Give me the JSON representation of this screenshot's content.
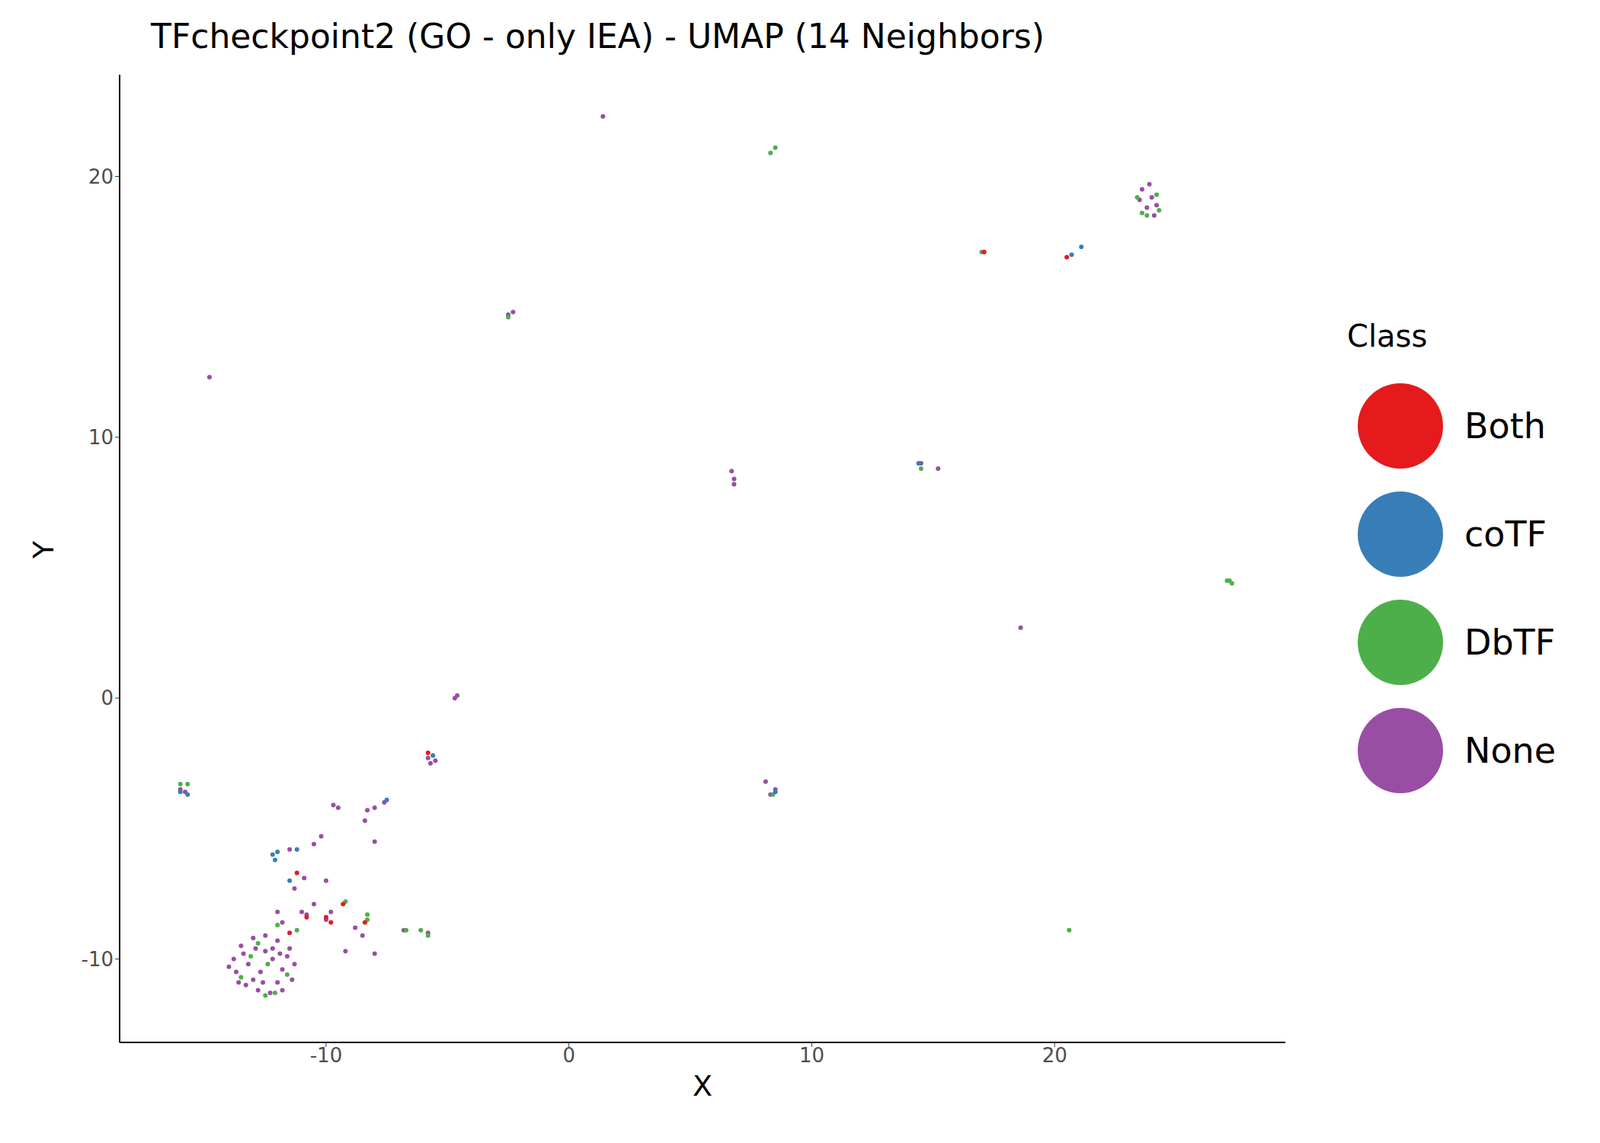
{
  "chart_data": {
    "type": "scatter",
    "title": "TFcheckpoint2 (GO - only IEA) - UMAP (14 Neighbors)",
    "x_label": "X",
    "y_label": "Y",
    "xlim": [
      -18.5,
      29.5
    ],
    "ylim": [
      -13.2,
      23.9
    ],
    "xticks": [
      -10,
      0,
      10,
      20
    ],
    "yticks": [
      -10,
      0,
      10,
      20
    ],
    "grid": false,
    "legend": "right",
    "legend_title": "Class",
    "series": [
      {
        "name": "Both",
        "color": "#E41A1C",
        "values": [
          [
            -11.2,
            -6.7
          ],
          [
            -10,
            -8.4
          ],
          [
            -9.8,
            -8.6
          ],
          [
            -10.8,
            -8.4
          ],
          [
            -9.3,
            -7.9
          ],
          [
            -11.5,
            -9
          ],
          [
            -8.4,
            -8.6
          ],
          [
            -5.8,
            -2.1
          ],
          [
            20.5,
            16.9
          ],
          [
            17.1,
            17.1
          ]
        ]
      },
      {
        "name": "coTF",
        "color": "#377EB8",
        "values": [
          [
            -12.2,
            -6
          ],
          [
            -12,
            -5.9
          ],
          [
            -12.1,
            -6.2
          ],
          [
            -11.2,
            -5.8
          ],
          [
            -11.5,
            -7
          ],
          [
            -7.5,
            -3.9
          ],
          [
            -15.7,
            -3.7
          ],
          [
            -16,
            -3.6
          ],
          [
            21.1,
            17.3
          ],
          [
            20.7,
            17
          ],
          [
            14.4,
            9
          ],
          [
            8.5,
            -3.6
          ],
          [
            -5.6,
            -2.2
          ]
        ]
      },
      {
        "name": "DbTF",
        "color": "#4DAF4A",
        "values": [
          [
            -12.5,
            -11.4
          ],
          [
            -12.1,
            -11.3
          ],
          [
            -13.1,
            -9.9
          ],
          [
            -12.4,
            -10.2
          ],
          [
            -11.6,
            -10.6
          ],
          [
            -13.5,
            -10.7
          ],
          [
            -12.8,
            -9.4
          ],
          [
            -12,
            -8.7
          ],
          [
            -11.2,
            -8.9
          ],
          [
            -9.2,
            -7.8
          ],
          [
            -8.3,
            -8.3
          ],
          [
            -6.7,
            -8.9
          ],
          [
            -6.1,
            -8.9
          ],
          [
            -5.8,
            -9.1
          ],
          [
            -16,
            -3.3
          ],
          [
            -15.7,
            -3.3
          ],
          [
            -2.5,
            14.6
          ],
          [
            8.3,
            20.9
          ],
          [
            8.5,
            21.1
          ],
          [
            17,
            17.1
          ],
          [
            23.4,
            19.2
          ],
          [
            23.8,
            18.5
          ],
          [
            24.2,
            19.3
          ],
          [
            24.3,
            18.7
          ],
          [
            23.6,
            18.6
          ],
          [
            27.2,
            4.5
          ],
          [
            27.3,
            4.4
          ],
          [
            27.1,
            4.5
          ],
          [
            20.6,
            -8.9
          ],
          [
            8.4,
            -3.7
          ],
          [
            14.5,
            8.8
          ],
          [
            -8.3,
            -8.5
          ]
        ]
      },
      {
        "name": "None",
        "color": "#984EA3",
        "values": [
          [
            -13.5,
            -9.5
          ],
          [
            -13,
            -9.2
          ],
          [
            -12.5,
            -9.1
          ],
          [
            -12,
            -9.3
          ],
          [
            -11.5,
            -9.6
          ],
          [
            -11.3,
            -10.2
          ],
          [
            -11.4,
            -10.8
          ],
          [
            -11.8,
            -11.2
          ],
          [
            -12.3,
            -11.3
          ],
          [
            -12.8,
            -11.2
          ],
          [
            -13.3,
            -11
          ],
          [
            -13.7,
            -10.5
          ],
          [
            -13.8,
            -10
          ],
          [
            -13.2,
            -10.2
          ],
          [
            -12.7,
            -10.5
          ],
          [
            -12.2,
            -10
          ],
          [
            -11.8,
            -10.4
          ],
          [
            -12.5,
            -9.7
          ],
          [
            -13,
            -10.8
          ],
          [
            -12,
            -10.9
          ],
          [
            -11.6,
            -9.9
          ],
          [
            -13.4,
            -9.8
          ],
          [
            -12.9,
            -9.6
          ],
          [
            -12.2,
            -9.6
          ],
          [
            -14,
            -10.3
          ],
          [
            -13.6,
            -10.9
          ],
          [
            -12.6,
            -10.9
          ],
          [
            -11.9,
            -9.8
          ],
          [
            -11.8,
            -8.6
          ],
          [
            -11.3,
            -7.3
          ],
          [
            -10.9,
            -6.9
          ],
          [
            -11.5,
            -5.8
          ],
          [
            -10.5,
            -5.6
          ],
          [
            -10.2,
            -5.3
          ],
          [
            -10,
            -7
          ],
          [
            -9.7,
            -4.1
          ],
          [
            -9.5,
            -4.2
          ],
          [
            -8.3,
            -4.3
          ],
          [
            -8,
            -4.2
          ],
          [
            -7.6,
            -4
          ],
          [
            -8.4,
            -4.7
          ],
          [
            -8,
            -5.5
          ],
          [
            -10.5,
            -7.9
          ],
          [
            -9.8,
            -8.2
          ],
          [
            -10,
            -8.5
          ],
          [
            -8.8,
            -8.8
          ],
          [
            -8.5,
            -9.1
          ],
          [
            -9.2,
            -9.7
          ],
          [
            -8,
            -9.8
          ],
          [
            -6.8,
            -8.9
          ],
          [
            -5.8,
            -9
          ],
          [
            -11,
            -8.2
          ],
          [
            -12,
            -8.2
          ],
          [
            -10.8,
            -8.3
          ],
          [
            -5.8,
            -2.3
          ],
          [
            -5.5,
            -2.4
          ],
          [
            -5.7,
            -2.5
          ],
          [
            -4.7,
            0
          ],
          [
            -4.6,
            0.1
          ],
          [
            -16,
            -3.5
          ],
          [
            -15.8,
            -3.6
          ],
          [
            -14.8,
            12.3
          ],
          [
            -2.5,
            14.7
          ],
          [
            -2.3,
            14.8
          ],
          [
            1.4,
            22.3
          ],
          [
            6.7,
            8.7
          ],
          [
            6.8,
            8.4
          ],
          [
            6.8,
            8.2
          ],
          [
            8.1,
            -3.2
          ],
          [
            8.3,
            -3.7
          ],
          [
            8.5,
            -3.5
          ],
          [
            14.5,
            9
          ],
          [
            15.2,
            8.8
          ],
          [
            18.6,
            2.7
          ],
          [
            23.6,
            19.5
          ],
          [
            24,
            19.2
          ],
          [
            23.8,
            18.8
          ],
          [
            24.2,
            18.9
          ],
          [
            23.5,
            19.1
          ],
          [
            23.9,
            19.7
          ],
          [
            24.1,
            18.5
          ]
        ]
      }
    ]
  }
}
